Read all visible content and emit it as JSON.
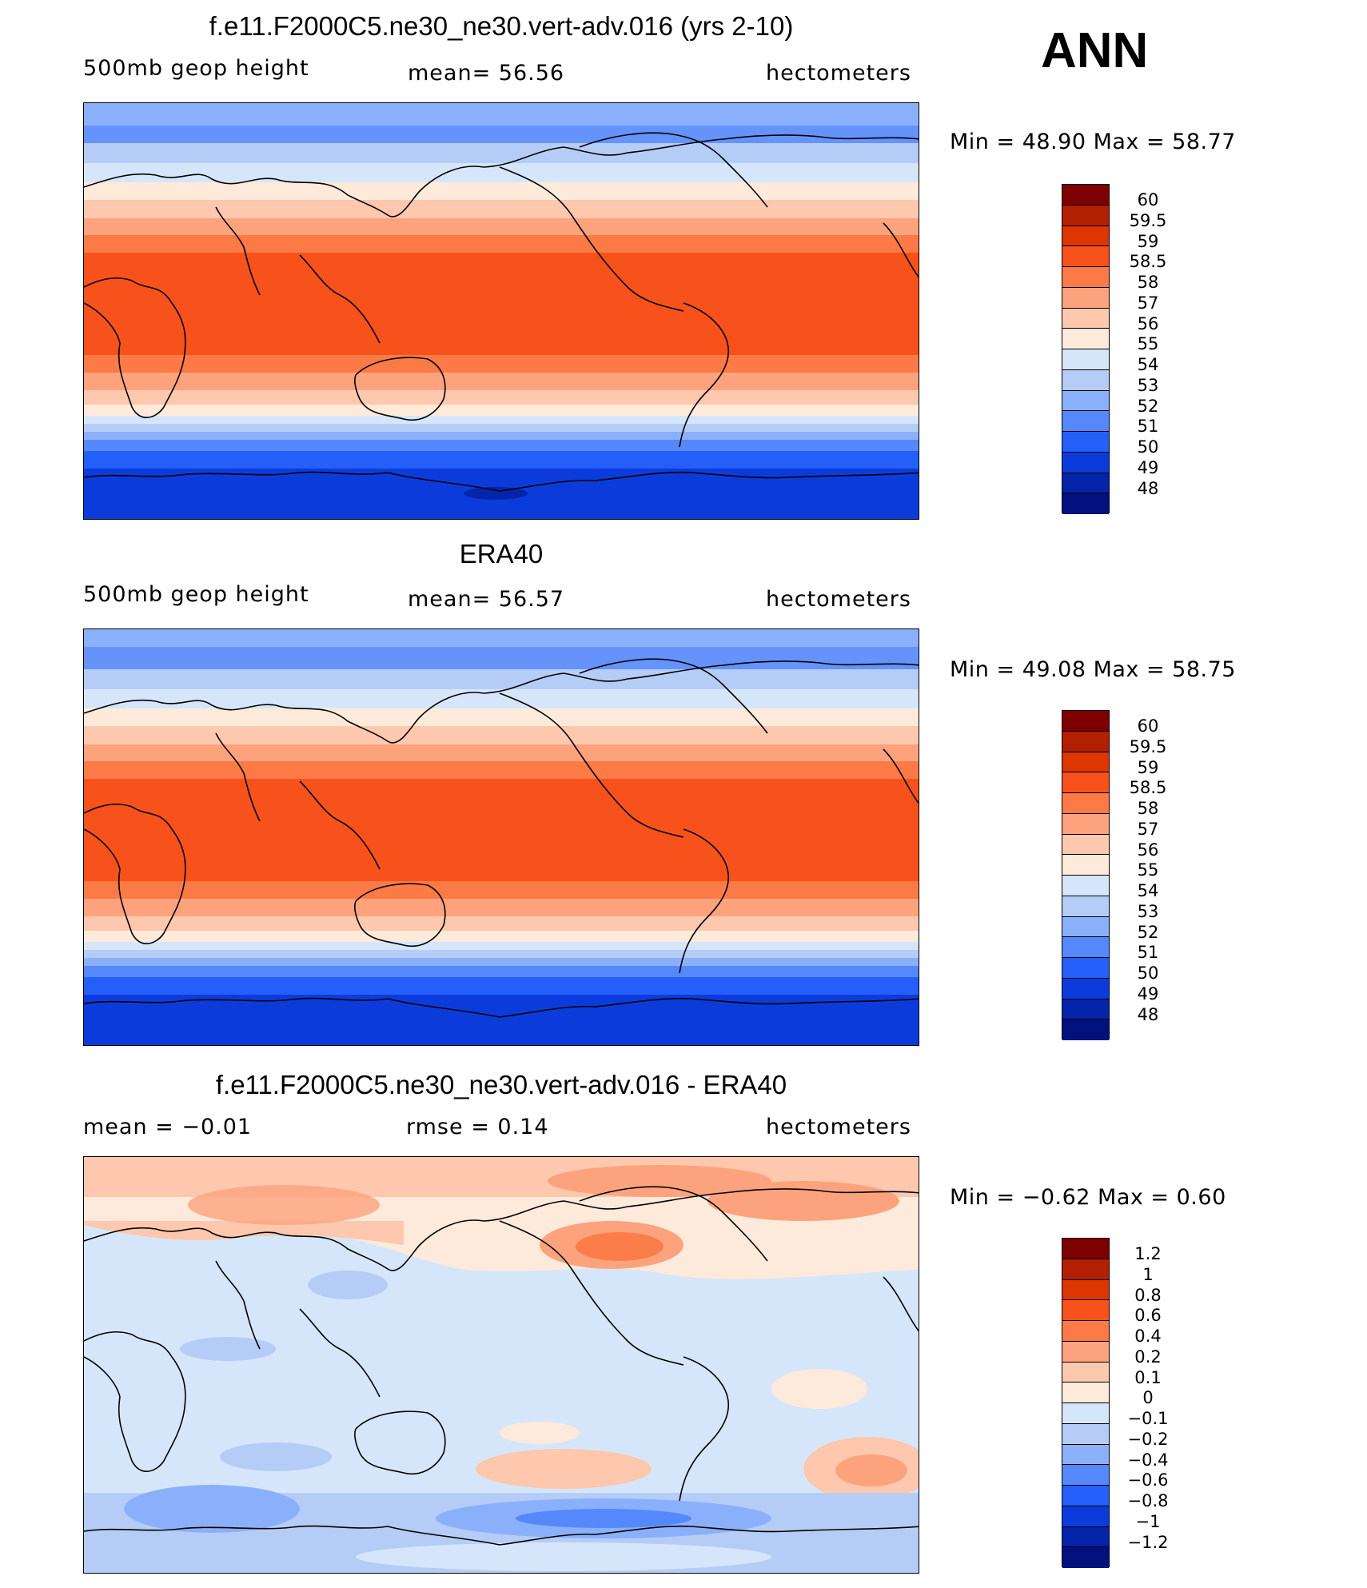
{
  "season": "ANN",
  "panels": [
    {
      "id": "model",
      "title": "f.e11.F2000C5.ne30_ne30.vert-adv.016 (yrs 2-10)",
      "left_label": "500mb  geop  height",
      "center_label": "mean=   56.56",
      "right_label": "hectometers",
      "minmax": "Min  =    48.90  Max  =    58.77",
      "colorbar": {
        "colors": [
          "#7f0000",
          "#b22000",
          "#dd3600",
          "#f7521c",
          "#fb7a45",
          "#fca37e",
          "#fdc8ad",
          "#feeadb",
          "#d6e6fa",
          "#b5cdf6",
          "#8bb0fb",
          "#5588fb",
          "#245ffa",
          "#0b3cdb",
          "#0424a9",
          "#02117d"
        ],
        "labels": [
          "60",
          "59.5",
          "59",
          "58.5",
          "58",
          "57",
          "56",
          "55",
          "54",
          "53",
          "52",
          "51",
          "50",
          "49",
          "48"
        ]
      }
    },
    {
      "id": "obs",
      "title": "ERA40",
      "left_label": "500mb  geop  height",
      "center_label": "mean=   56.57",
      "right_label": "hectometers",
      "minmax": "Min  =    49.08  Max  =    58.75",
      "colorbar": {
        "colors": [
          "#7f0000",
          "#b22000",
          "#dd3600",
          "#f7521c",
          "#fb7a45",
          "#fca37e",
          "#fdc8ad",
          "#feeadb",
          "#d6e6fa",
          "#b5cdf6",
          "#8bb0fb",
          "#5588fb",
          "#245ffa",
          "#0b3cdb",
          "#0424a9",
          "#02117d"
        ],
        "labels": [
          "60",
          "59.5",
          "59",
          "58.5",
          "58",
          "57",
          "56",
          "55",
          "54",
          "53",
          "52",
          "51",
          "50",
          "49",
          "48"
        ]
      }
    },
    {
      "id": "diff",
      "title": "f.e11.F2000C5.ne30_ne30.vert-adv.016 - ERA40",
      "left_label": "mean  =    −0.01",
      "center_label": "rmse  =     0.14",
      "right_label": "hectometers",
      "minmax": "Min  =   −0.62  Max  =     0.60",
      "colorbar": {
        "colors": [
          "#7f0000",
          "#b22000",
          "#dd3600",
          "#f7521c",
          "#fb7a45",
          "#fca37e",
          "#fdc8ad",
          "#feeadb",
          "#d6e6fa",
          "#b5cdf6",
          "#8bb0fb",
          "#5588fb",
          "#245ffa",
          "#0b3cdb",
          "#0424a9",
          "#02117d"
        ],
        "labels": [
          "1.2",
          "1",
          "0.8",
          "0.6",
          "0.4",
          "0.2",
          "0.1",
          "0",
          "−0.1",
          "−0.2",
          "−0.4",
          "−0.6",
          "−0.8",
          "−1",
          "−1.2"
        ]
      }
    }
  ]
}
